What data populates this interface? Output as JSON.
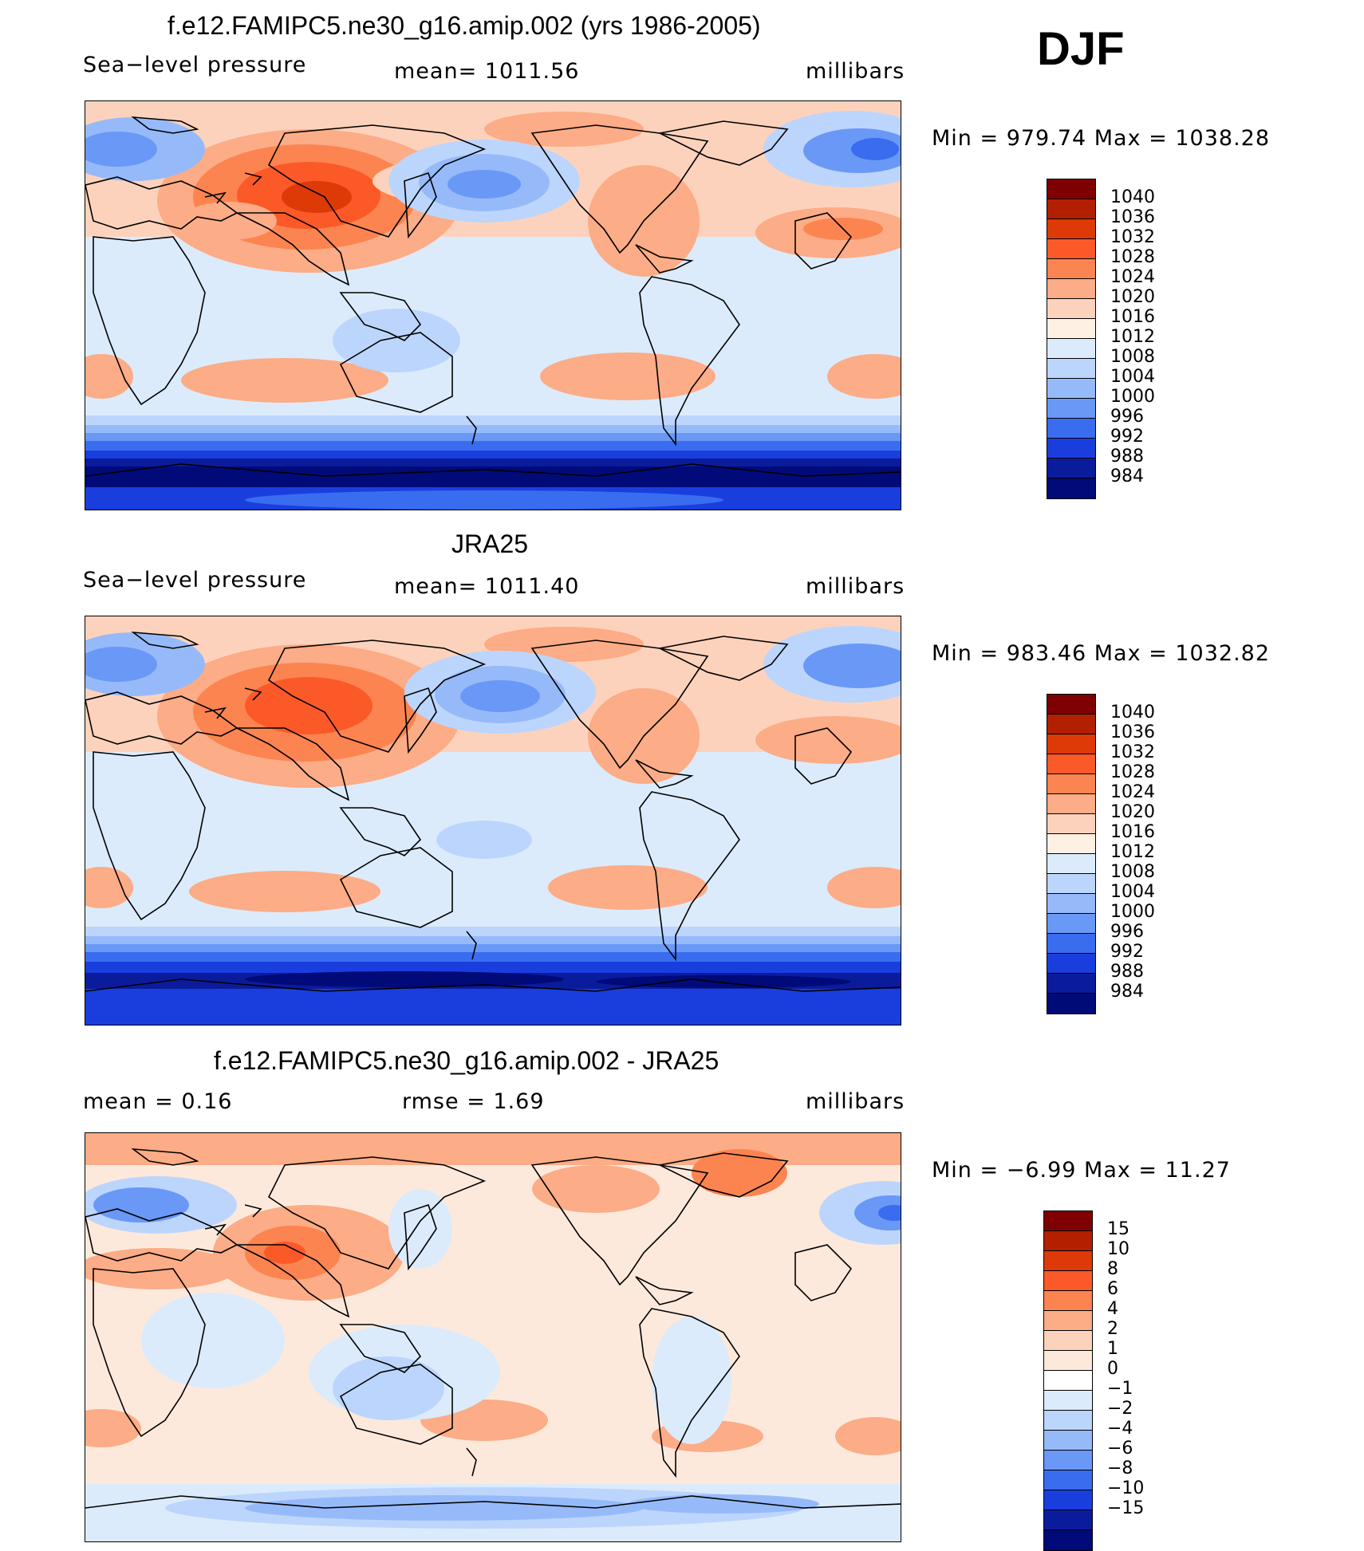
{
  "season": "DJF",
  "panels": [
    {
      "title": "f.e12.FAMIPC5.ne30_g16.amip.002 (yrs 1986-2005)",
      "left_label": "Sea−level pressure",
      "center_label": "mean=  1011.56",
      "right_label": "millibars",
      "minmax": "Min  =  979.74  Max  =  1038.28",
      "levels": [
        "1040",
        "1036",
        "1032",
        "1028",
        "1024",
        "1020",
        "1016",
        "1012",
        "1008",
        "1004",
        "1000",
        "996",
        "992",
        "988",
        "984"
      ]
    },
    {
      "title": "JRA25",
      "left_label": "Sea−level pressure",
      "center_label": "mean=  1011.40",
      "right_label": "millibars",
      "minmax": "Min  =  983.46  Max  =  1032.82",
      "levels": [
        "1040",
        "1036",
        "1032",
        "1028",
        "1024",
        "1020",
        "1016",
        "1012",
        "1008",
        "1004",
        "1000",
        "996",
        "992",
        "988",
        "984"
      ]
    },
    {
      "title": "f.e12.FAMIPC5.ne30_g16.amip.002 - JRA25",
      "left_label": "mean  =     0.16",
      "center_label": "rmse  =     1.69",
      "right_label": "millibars",
      "minmax": "Min  =   −6.99  Max  =    11.27",
      "levels": [
        "15",
        "10",
        "8",
        "6",
        "4",
        "2",
        "1",
        "0",
        "−1",
        "−2",
        "−4",
        "−6",
        "−8",
        "−10",
        "−15"
      ]
    }
  ],
  "colors": {
    "abs_scale": [
      "#7f0000",
      "#b22000",
      "#dd3a08",
      "#fb5a28",
      "#fc8450",
      "#fcac86",
      "#fdd2bc",
      "#fff0e4",
      "#dcebfb",
      "#bcd5fc",
      "#96baf9",
      "#6a98f6",
      "#3a6cf0",
      "#1a3ede",
      "#0a1c9c",
      "#000a78"
    ],
    "diff_scale": [
      "#7f0000",
      "#b22000",
      "#dd3a08",
      "#fb5a28",
      "#fc8450",
      "#fcac86",
      "#fdd2bc",
      "#fde9dc",
      "#ffffff",
      "#dcebfb",
      "#bcd5fc",
      "#96baf9",
      "#6a98f6",
      "#3a6cf0",
      "#1a3ede",
      "#0a1c9c",
      "#000a78"
    ]
  }
}
